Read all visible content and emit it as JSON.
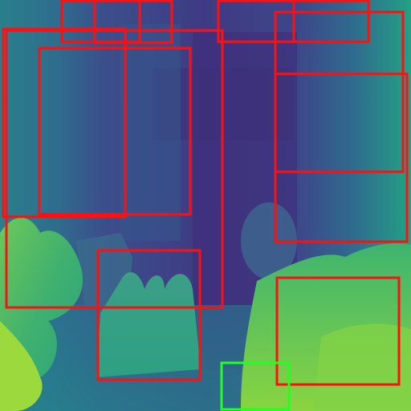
{
  "image": {
    "kind": "depth-map",
    "colormap": "viridis",
    "near_color": "#b5de2b",
    "far_color": "#3b1f6b"
  },
  "overlay": {
    "red_box_color": "#ff1010",
    "green_box_color": "#22ff22",
    "red_box_count": 13,
    "green_box_count": 1
  }
}
